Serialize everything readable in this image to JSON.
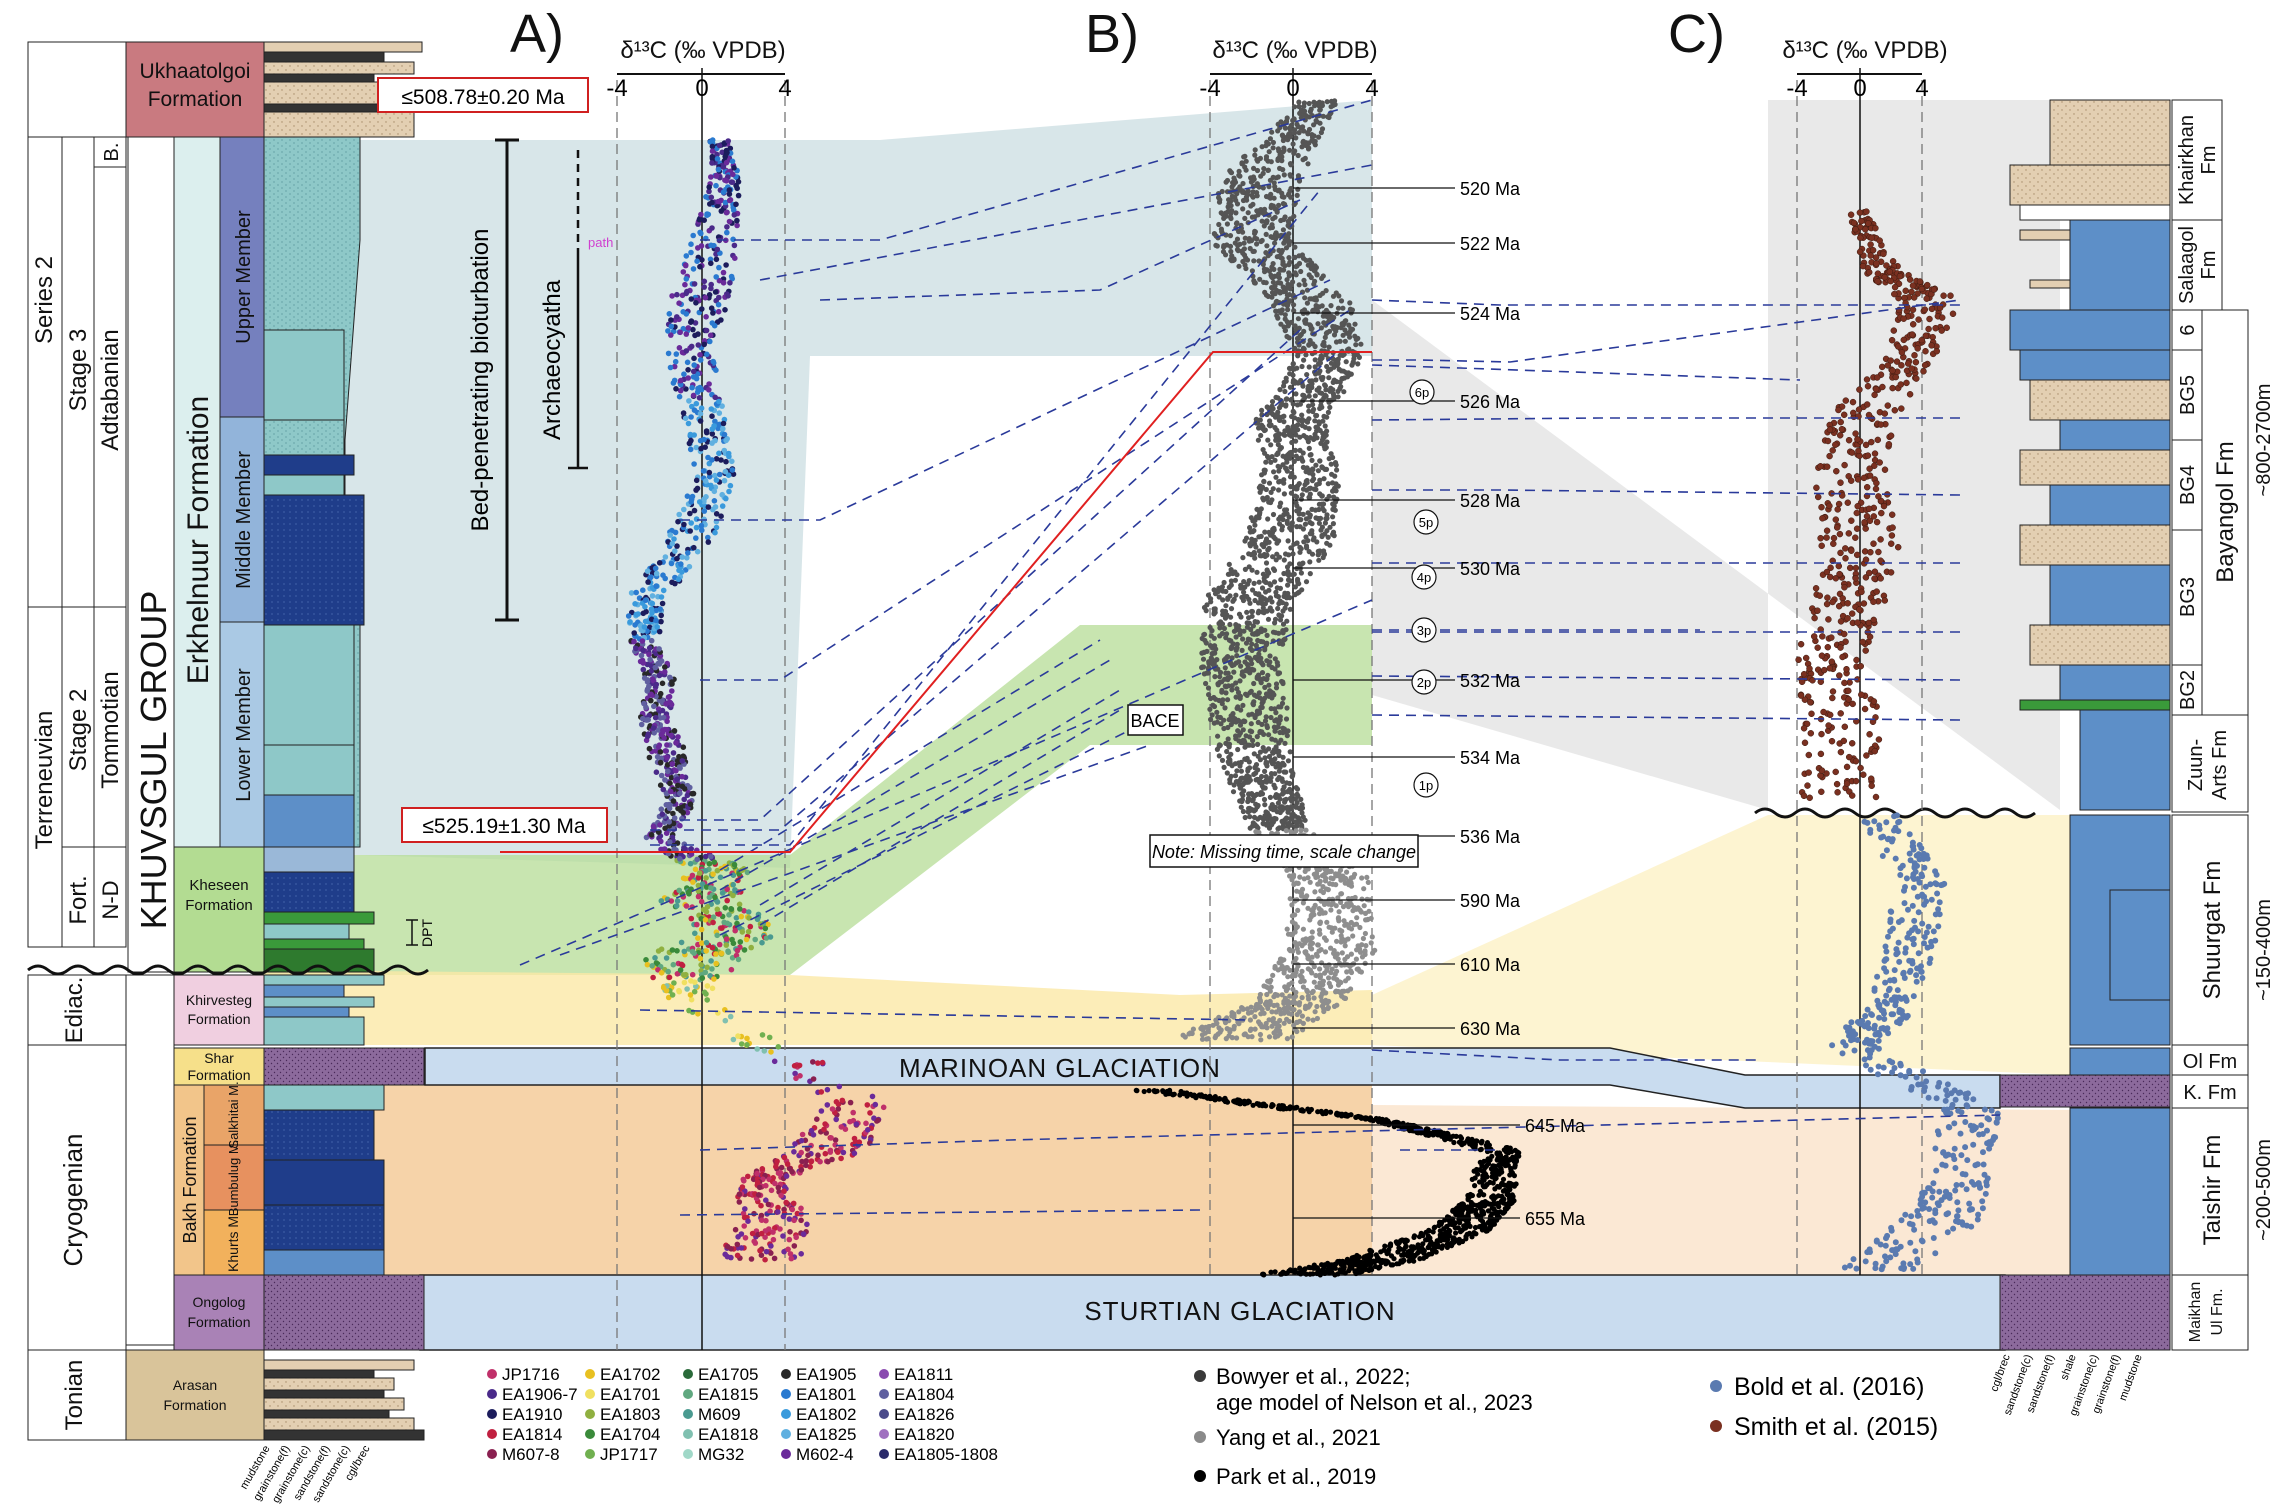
{
  "panels": {
    "a": {
      "letter": "A)",
      "axis_title": "δ¹³C (‰ VPDB)",
      "ticks": [
        "-4",
        "0",
        "4"
      ]
    },
    "b": {
      "letter": "B)",
      "axis_title": "δ¹³C (‰ VPDB)",
      "ticks": [
        "-4",
        "0",
        "4"
      ]
    },
    "c": {
      "letter": "C)",
      "axis_title": "δ¹³C (‰ VPDB)",
      "ticks": [
        "-4",
        "0",
        "4"
      ]
    }
  },
  "chronostrat": {
    "series": [
      {
        "label": "Series 2"
      },
      {
        "label": "Terreneuvian"
      }
    ],
    "stages": [
      {
        "label": "Stage 3"
      },
      {
        "label": "Stage 2"
      },
      {
        "label": "Fort."
      }
    ],
    "regional": [
      {
        "label": "B."
      },
      {
        "label": "Adtabanian"
      },
      {
        "label": "Tommotian"
      },
      {
        "label": "N-D"
      }
    ],
    "periods": [
      {
        "label": "Ediac."
      },
      {
        "label": "Cryogenian"
      },
      {
        "label": "Tonian"
      }
    ]
  },
  "lithostrat": {
    "group": "KHUVSGUL GROUP",
    "formation": "Erkhelnuur Formation",
    "members": [
      "Upper Member",
      "Middle Member",
      "Lower Member"
    ],
    "bakh": "Bakh Formation",
    "bakh_members": [
      "Salkhitai M.",
      "Bumbulug M.",
      "Khurts M."
    ],
    "formations": {
      "ukhaatolgoi": [
        "Ukhaatolgoi",
        "Formation"
      ],
      "kheseen": [
        "Kheseen",
        "Formation"
      ],
      "khirvesteg": [
        "Khirvesteg",
        "Formation"
      ],
      "shar": [
        "Shar",
        "Formation"
      ],
      "ongolog": [
        "Ongolog",
        "Formation"
      ],
      "arasan": [
        "Arasan",
        "Formation"
      ]
    }
  },
  "lithology_labels_a": [
    "mudstone",
    "grainstone(f)",
    "grainstone(c)",
    "sandstone(f)",
    "sandstone(c)",
    "cgl/brec"
  ],
  "lithology_labels_c": [
    "cgl/brec",
    "sandstone(c)",
    "sandstone(f)",
    "shale",
    "grainstone(c)",
    "grainstone(f)",
    "mudstone"
  ],
  "ages": {
    "top": "≤508.78±0.20 Ma",
    "bottom": "≤525.19±1.30 Ma"
  },
  "annotations": {
    "bioturbation": "Bed-penetrating bioturbation",
    "archaeocyatha": "Archaeocyatha",
    "path": "path",
    "dpt": "DPT",
    "bace": "BACE",
    "note": "Note: Missing time, scale change"
  },
  "glaciations": {
    "marinoan": "MARINOAN GLACIATION",
    "sturtian": "STURTIAN GLACIATION"
  },
  "age_ticks": [
    "520 Ma",
    "522 Ma",
    "524 Ma",
    "526 Ma",
    "528 Ma",
    "530 Ma",
    "532 Ma",
    "534 Ma",
    "536 Ma",
    "590 Ma",
    "610 Ma",
    "630 Ma",
    "645 Ma",
    "655 Ma"
  ],
  "peaks": [
    "6p",
    "5p",
    "4p",
    "3p",
    "2p",
    "1p"
  ],
  "c_units": {
    "khairkhan": [
      "Khairkhan",
      "Fm"
    ],
    "salaagol": [
      "Salaagol",
      "Fm"
    ],
    "bayangol": "Bayangol Fm",
    "bayangol_thick": "~800-2700m",
    "bg": [
      "6",
      "BG5",
      "BG4",
      "BG3",
      "BG2"
    ],
    "zuun": [
      "Zuun-",
      "Arts Fm"
    ],
    "shuurgat": "Shuurgat Fm",
    "shuurgat_thick": "~150-400m",
    "ol": "Ol Fm",
    "k": "K. Fm",
    "taishir": "Taishir Fm",
    "taishir_thick": "~200-500m",
    "maikhan": [
      "Maikhan",
      "Ul Fm."
    ]
  },
  "legend_a": [
    "JP1716",
    "EA1906-7",
    "EA1910",
    "EA1814",
    "M607-8",
    "EA1702",
    "EA1701",
    "EA1803",
    "EA1704",
    "JP1717",
    "EA1705",
    "EA1815",
    "M609",
    "EA1818",
    "MG32",
    "EA1905",
    "EA1801",
    "EA1802",
    "EA1825",
    "M602-4",
    "EA1811",
    "EA1804",
    "EA1826",
    "EA1820",
    "EA1805-1808"
  ],
  "legend_a_colors": [
    "#c0306a",
    "#4a2a8a",
    "#1c1c5c",
    "#c02040",
    "#8a2050",
    "#e8c020",
    "#f0e060",
    "#90b040",
    "#3a8a3a",
    "#70b050",
    "#2a6a3a",
    "#60a880",
    "#4a9a90",
    "#80c0b0",
    "#a0d8c8",
    "#282828",
    "#2a7ad0",
    "#3a9adc",
    "#60b0e0",
    "#6a2a9a",
    "#8a4ab0",
    "#6060a0",
    "#4a4a8a",
    "#a070c0",
    "#2a2a6a"
  ],
  "legend_b": [
    "Bowyer et al., 2022;",
    "age model of Nelson et al., 2023",
    "Yang et al., 2021",
    "Park et al., 2019"
  ],
  "legend_b_colors": [
    "#3a3a3a",
    "#8a8a8a",
    "#000000"
  ],
  "legend_c": [
    "Bold et al. (2016)",
    "Smith et al. (2015)"
  ],
  "legend_c_colors": [
    "#5a7ab0",
    "#7a3020"
  ]
}
